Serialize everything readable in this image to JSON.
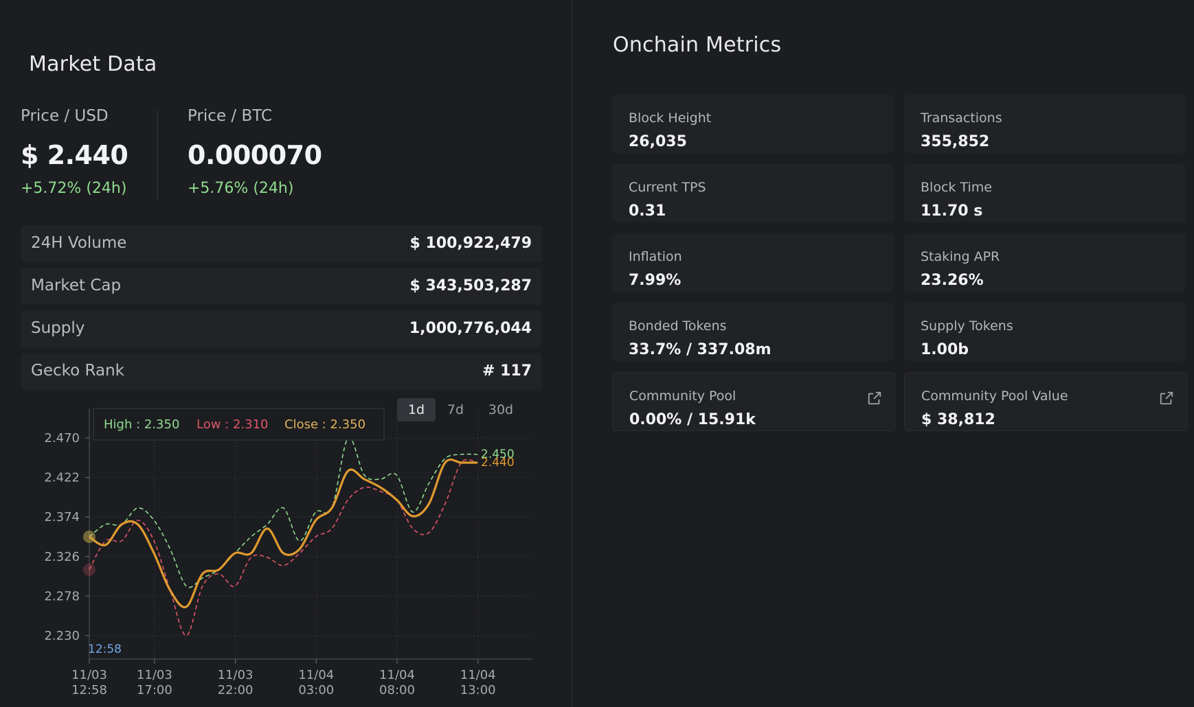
{
  "market": {
    "title": "Market Data",
    "price_usd": {
      "label": "Price / USD",
      "value": "$ 2.440",
      "change": "+5.72% (24h)"
    },
    "price_btc": {
      "label": "Price / BTC",
      "value": "0.000070",
      "change": "+5.76% (24h)"
    },
    "stats": [
      {
        "label": "24H Volume",
        "value": "$ 100,922,479"
      },
      {
        "label": "Market Cap",
        "value": "$ 343,503,287"
      },
      {
        "label": "Supply",
        "value": "1,000,776,044"
      },
      {
        "label": "Gecko Rank",
        "value": "# 117"
      }
    ],
    "timeframes": [
      "1d",
      "7d",
      "30d"
    ],
    "active_timeframe": "1d",
    "tooltip": {
      "high": "High : 2.350",
      "low": "Low : 2.310",
      "close": "Close : 2.350"
    },
    "crosshair_label": "12:58",
    "last_high_label": "2.450",
    "last_close_label": "2.440"
  },
  "chart_data": {
    "type": "line",
    "ylim": [
      2.21,
      2.49
    ],
    "yticks": [
      "2.470",
      "2.422",
      "2.374",
      "2.326",
      "2.278",
      "2.230"
    ],
    "ytick_values": [
      2.47,
      2.422,
      2.374,
      2.326,
      2.278,
      2.23
    ],
    "xticks": [
      {
        "date": "11/03",
        "time": "12:58",
        "x": 0
      },
      {
        "date": "11/03",
        "time": "17:00",
        "x": 4.03
      },
      {
        "date": "11/03",
        "time": "22:00",
        "x": 9.03
      },
      {
        "date": "11/04",
        "time": "03:00",
        "x": 14.03
      },
      {
        "date": "11/04",
        "time": "08:00",
        "x": 19.03
      },
      {
        "date": "11/04",
        "time": "13:00",
        "x": 24.03
      }
    ],
    "x": [
      0,
      1,
      2,
      3,
      4,
      5,
      6,
      7,
      8,
      9,
      10,
      11,
      12,
      13,
      14,
      15,
      16,
      17,
      18,
      19,
      20,
      21,
      22,
      23,
      24
    ],
    "series": [
      {
        "name": "High",
        "color": "#8fdc8f",
        "values": [
          2.35,
          2.365,
          2.365,
          2.385,
          2.37,
          2.335,
          2.29,
          2.3,
          2.31,
          2.33,
          2.35,
          2.365,
          2.385,
          2.345,
          2.38,
          2.385,
          2.47,
          2.425,
          2.42,
          2.425,
          2.38,
          2.415,
          2.445,
          2.45,
          2.45
        ]
      },
      {
        "name": "Low",
        "color": "#e0566a",
        "values": [
          2.31,
          2.345,
          2.345,
          2.37,
          2.345,
          2.285,
          2.23,
          2.29,
          2.305,
          2.29,
          2.325,
          2.325,
          2.315,
          2.33,
          2.35,
          2.36,
          2.395,
          2.41,
          2.405,
          2.395,
          2.36,
          2.355,
          2.39,
          2.44,
          2.44
        ]
      },
      {
        "name": "Close",
        "color": "#e09a2f",
        "values": [
          2.35,
          2.34,
          2.365,
          2.365,
          2.33,
          2.285,
          2.265,
          2.305,
          2.31,
          2.33,
          2.33,
          2.36,
          2.33,
          2.335,
          2.37,
          2.385,
          2.43,
          2.42,
          2.41,
          2.395,
          2.375,
          2.39,
          2.44,
          2.44,
          2.44
        ]
      }
    ]
  },
  "onchain": {
    "title": "Onchain Metrics",
    "cards": [
      {
        "label": "Block Height",
        "value": "26,035"
      },
      {
        "label": "Transactions",
        "value": "355,852"
      },
      {
        "label": "Current TPS",
        "value": "0.31"
      },
      {
        "label": "Block Time",
        "value": "11.70 s"
      },
      {
        "label": "Inflation",
        "value": "7.99%"
      },
      {
        "label": "Staking APR",
        "value": "23.26%"
      },
      {
        "label": "Bonded Tokens",
        "value": "33.7% / 337.08m"
      },
      {
        "label": "Supply Tokens",
        "value": "1.00b"
      },
      {
        "label": "Community Pool",
        "value": "0.00% / 15.91k",
        "icon": "external-link-icon"
      },
      {
        "label": "Community Pool Value",
        "value": "$ 38,812",
        "icon": "external-link-icon"
      }
    ]
  }
}
